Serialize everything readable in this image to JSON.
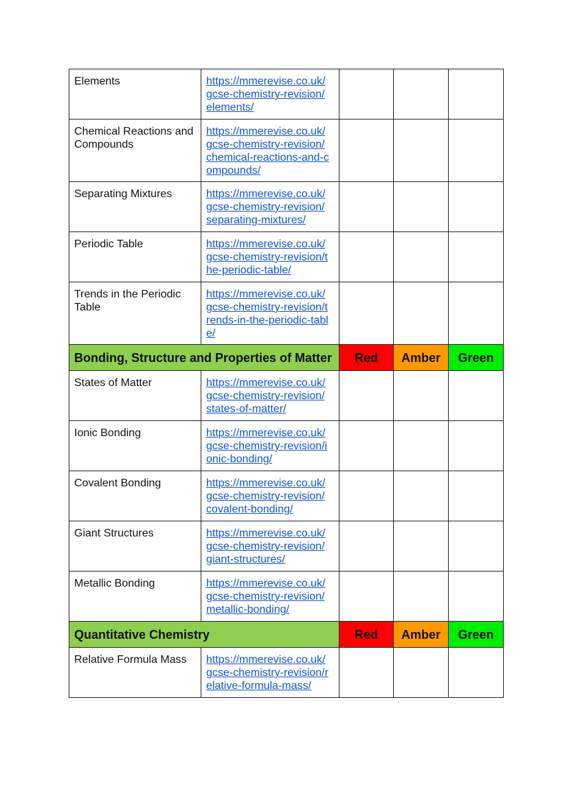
{
  "colors": {
    "section_bg": "#8fcf50",
    "red": "#ff0000",
    "amber": "#ff9900",
    "green": "#00ee00",
    "link": "#1155cc"
  },
  "rows": [
    {
      "type": "item",
      "topic": "Elements",
      "url_lines": [
        "https://mmerevise.co.uk/",
        "gcse-chemistry-revision/",
        "elements/"
      ]
    },
    {
      "type": "item",
      "topic": "Chemical Reactions and Compounds",
      "url_lines": [
        "https://mmerevise.co.uk/",
        "gcse-chemistry-revision/",
        "chemical-reactions-and-c",
        "ompounds/"
      ]
    },
    {
      "type": "item",
      "topic": "Separating Mixtures",
      "url_lines": [
        "https://mmerevise.co.uk/",
        "gcse-chemistry-revision/",
        "separating-mixtures/"
      ]
    },
    {
      "type": "item",
      "topic": "Periodic Table",
      "url_lines": [
        "https://mmerevise.co.uk/",
        "gcse-chemistry-revision/t",
        "he-periodic-table/"
      ]
    },
    {
      "type": "item",
      "topic": "Trends in the Periodic Table",
      "url_lines": [
        "https://mmerevise.co.uk/",
        "gcse-chemistry-revision/t",
        "rends-in-the-periodic-tabl",
        "e/"
      ]
    },
    {
      "type": "section",
      "title": "Bonding, Structure and Properties of Matter",
      "red": "Red",
      "amber": "Amber",
      "green": "Green"
    },
    {
      "type": "item",
      "topic": "States of Matter",
      "url_lines": [
        "https://mmerevise.co.uk/",
        "gcse-chemistry-revision/",
        "states-of-matter/"
      ]
    },
    {
      "type": "item",
      "topic": "Ionic Bonding",
      "url_lines": [
        "https://mmerevise.co.uk/",
        "gcse-chemistry-revision/i",
        "onic-bonding/"
      ]
    },
    {
      "type": "item",
      "topic": "Covalent Bonding",
      "url_lines": [
        "https://mmerevise.co.uk/",
        "gcse-chemistry-revision/",
        "covalent-bonding/"
      ]
    },
    {
      "type": "item",
      "topic": "Giant Structures",
      "url_lines": [
        "https://mmerevise.co.uk/",
        "gcse-chemistry-revision/",
        "giant-structures/"
      ]
    },
    {
      "type": "item",
      "topic": "Metallic Bonding",
      "url_lines": [
        "https://mmerevise.co.uk/",
        "gcse-chemistry-revision/",
        "metallic-bonding/"
      ]
    },
    {
      "type": "section",
      "title": "Quantitative Chemistry",
      "red": "Red",
      "amber": "Amber",
      "green": "Green"
    },
    {
      "type": "item",
      "topic": "Relative Formula Mass",
      "url_lines": [
        "https://mmerevise.co.uk/",
        "gcse-chemistry-revision/r",
        "elative-formula-mass/"
      ]
    }
  ]
}
